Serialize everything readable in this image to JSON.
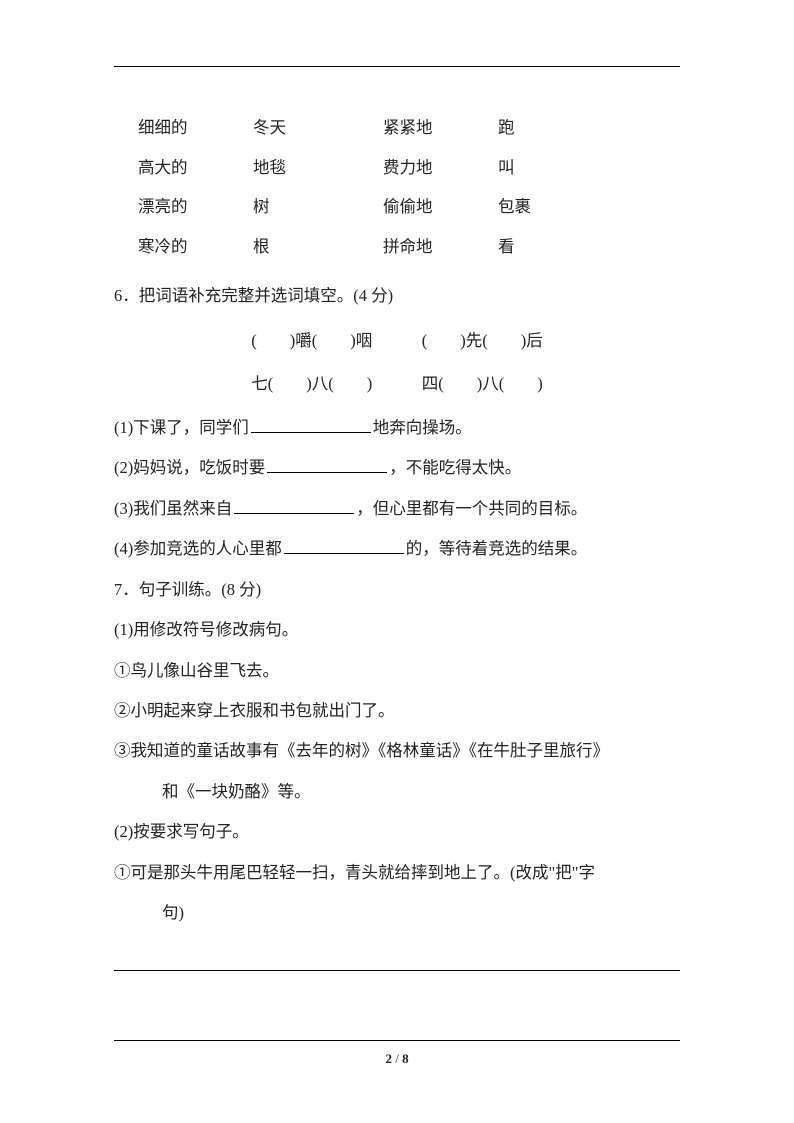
{
  "wordPairs": {
    "rows": [
      {
        "c1": "细细的",
        "c2": "冬天",
        "c3": "紧紧地",
        "c4": "跑"
      },
      {
        "c1": "高大的",
        "c2": "地毯",
        "c3": "费力地",
        "c4": "叫"
      },
      {
        "c1": "漂亮的",
        "c2": "树",
        "c3": "偷偷地",
        "c4": "包裹"
      },
      {
        "c1": "寒冷的",
        "c2": "根",
        "c3": "拼命地",
        "c4": "看"
      }
    ]
  },
  "q6": {
    "title": "6．把词语补充完整并选词填空。(4 分)",
    "fill1": "(　　)嚼(　　)咽　　　(　　)先(　　)后",
    "fill2": "七(　　)八(　　)　　　四(　　)八(　　)",
    "sub1_pre": "(1)下课了，同学们",
    "sub1_post": "地奔向操场。",
    "sub2_pre": "(2)妈妈说，吃饭时要",
    "sub2_post": "，不能吃得太快。",
    "sub3_pre": "(3)我们虽然来自",
    "sub3_post": "，但心里都有一个共同的目标。",
    "sub4_pre": "(4)参加竞选的人心里都",
    "sub4_post": "的，等待着竞选的结果。"
  },
  "q7": {
    "title": "7．句子训练。(8 分)",
    "p1": "(1)用修改符号修改病句。",
    "s1": "①鸟儿像山谷里飞去。",
    "s2": "②小明起来穿上衣服和书包就出门了。",
    "s3a": "③我知道的童话故事有《去年的树》《格林童话》《在牛肚子里旅行》",
    "s3b": "和《一块奶酪》等。",
    "p2": "(2)按要求写句子。",
    "s4a": "①可是那头牛用尾巴轻轻一扫，青头就给摔到地上了。(改成\"把\"字",
    "s4b": "句)"
  },
  "pageNum": {
    "cur": "2",
    "total": "8"
  }
}
